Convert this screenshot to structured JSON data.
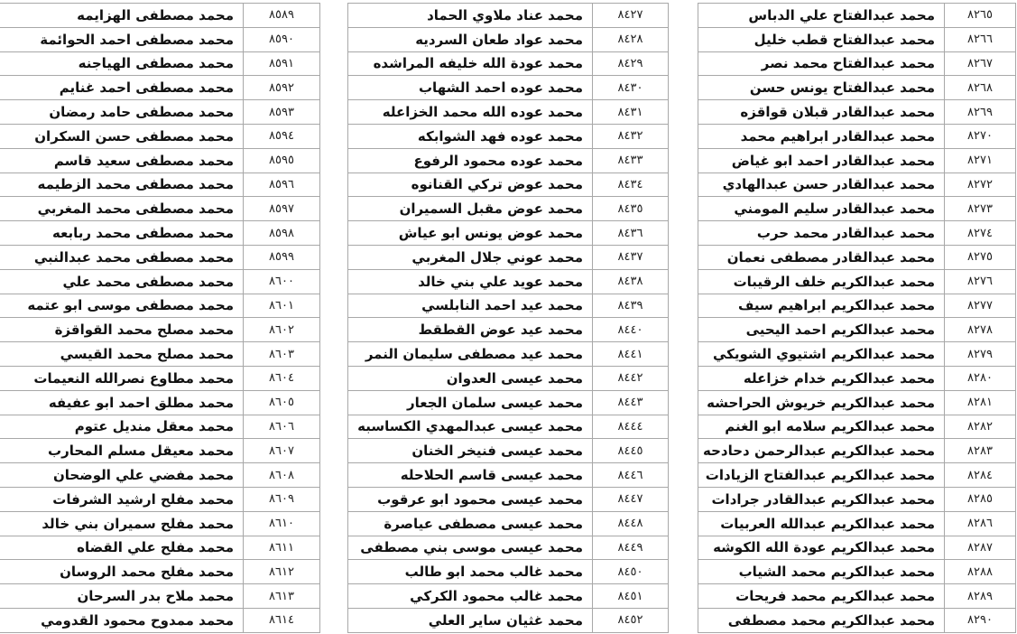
{
  "tables": [
    {
      "id": "left",
      "rows": [
        {
          "num": "٨٥٨٩",
          "name": "محمد مصطفى   الهزايمه"
        },
        {
          "num": "٨٥٩٠",
          "name": "محمد مصطفى  احمد الحوائمة"
        },
        {
          "num": "٨٥٩١",
          "name": "محمد مصطفى  الهياجنه"
        },
        {
          "num": "٨٥٩٢",
          "name": "محمد مصطفى احمد غنايم"
        },
        {
          "num": "٨٥٩٣",
          "name": "محمد مصطفى حامد رمضان"
        },
        {
          "num": "٨٥٩٤",
          "name": "محمد مصطفى حسن السكران"
        },
        {
          "num": "٨٥٩٥",
          "name": "محمد مصطفى سعيد قاسم"
        },
        {
          "num": "٨٥٩٦",
          "name": "محمد مصطفى محمد الزطيمه"
        },
        {
          "num": "٨٥٩٧",
          "name": "محمد مصطفى محمد المغربي"
        },
        {
          "num": "٨٥٩٨",
          "name": "محمد مصطفى محمد ربابعه"
        },
        {
          "num": "٨٥٩٩",
          "name": "محمد مصطفى محمد عبدالنبي"
        },
        {
          "num": "٨٦٠٠",
          "name": "محمد مصطفى محمد علي"
        },
        {
          "num": "٨٦٠١",
          "name": "محمد مصطفى موسى ابو عتمه"
        },
        {
          "num": "٨٦٠٢",
          "name": "محمد مصلح محمد القواقزة"
        },
        {
          "num": "٨٦٠٣",
          "name": "محمد مصلح محمد القيسي"
        },
        {
          "num": "٨٦٠٤",
          "name": "محمد مطاوع نصرالله النعيمات"
        },
        {
          "num": "٨٦٠٥",
          "name": "محمد مطلق احمد ابو عفيفه"
        },
        {
          "num": "٨٦٠٦",
          "name": "محمد معقل منديل عتوم"
        },
        {
          "num": "٨٦٠٧",
          "name": "محمد معيقل مسلم المحارب"
        },
        {
          "num": "٨٦٠٨",
          "name": "محمد مفضي علي الوضحان"
        },
        {
          "num": "٨٦٠٩",
          "name": "محمد مفلح ارشيد الشرفات"
        },
        {
          "num": "٨٦١٠",
          "name": "محمد مفلح سميران بني خالد"
        },
        {
          "num": "٨٦١١",
          "name": "محمد مفلح علي القضاه"
        },
        {
          "num": "٨٦١٢",
          "name": "محمد مفلح محمد الروسان"
        },
        {
          "num": "٨٦١٣",
          "name": "محمد ملاح بدر السرحان"
        },
        {
          "num": "٨٦١٤",
          "name": "محمد ممدوح  محمود القدومي"
        }
      ]
    },
    {
      "id": "mid",
      "rows": [
        {
          "num": "٨٤٢٧",
          "name": "محمد عناد ملاوي الحماد"
        },
        {
          "num": "٨٤٢٨",
          "name": "محمد عواد طعان السرديه"
        },
        {
          "num": "٨٤٢٩",
          "name": "محمد عودة الله خليفه المراشده"
        },
        {
          "num": "٨٤٣٠",
          "name": "محمد عوده احمد الشهاب"
        },
        {
          "num": "٨٤٣١",
          "name": "محمد عوده الله محمد الخزاعله"
        },
        {
          "num": "٨٤٣٢",
          "name": "محمد عوده فهد الشوابكه"
        },
        {
          "num": "٨٤٣٣",
          "name": "محمد عوده محمود الرفوع"
        },
        {
          "num": "٨٤٣٤",
          "name": "محمد عوض تركي القنانوه"
        },
        {
          "num": "٨٤٣٥",
          "name": "محمد عوض مقبل السميران"
        },
        {
          "num": "٨٤٣٦",
          "name": "محمد عوض يونس ابو عياش"
        },
        {
          "num": "٨٤٣٧",
          "name": "محمد عوني جلال المغربي"
        },
        {
          "num": "٨٤٣٨",
          "name": "محمد عويد علي بني خالد"
        },
        {
          "num": "٨٤٣٩",
          "name": "محمد عيد احمد النابلسي"
        },
        {
          "num": "٨٤٤٠",
          "name": "محمد عيد عوض القطقط"
        },
        {
          "num": "٨٤٤١",
          "name": "محمد عيد مصطفى  سليمان  النمر"
        },
        {
          "num": "٨٤٤٢",
          "name": "محمد عيسى  العدوان"
        },
        {
          "num": "٨٤٤٣",
          "name": "محمد عيسى سلمان الجعار"
        },
        {
          "num": "٨٤٤٤",
          "name": "محمد عيسى عبدالمهدي الكساسبه"
        },
        {
          "num": "٨٤٤٥",
          "name": "محمد عيسى فنيخر الخنان"
        },
        {
          "num": "٨٤٤٦",
          "name": "محمد عيسى قاسم الحلاحله"
        },
        {
          "num": "٨٤٤٧",
          "name": "محمد عيسى محمود ابو عرقوب"
        },
        {
          "num": "٨٤٤٨",
          "name": "محمد عيسى مصطفى عياصرة"
        },
        {
          "num": "٨٤٤٩",
          "name": "محمد عيسى موسى بني مصطفى"
        },
        {
          "num": "٨٤٥٠",
          "name": "محمد غالب محمد ابو طالب"
        },
        {
          "num": "٨٤٥١",
          "name": "محمد غالب محمود الكركي"
        },
        {
          "num": "٨٤٥٢",
          "name": "محمد غثيان ساير العلي"
        }
      ]
    },
    {
      "id": "right",
      "rows": [
        {
          "num": "٨٢٦٥",
          "name": "محمد عبدالفتاح علي الدباس"
        },
        {
          "num": "٨٢٦٦",
          "name": "محمد عبدالفتاح قطب خليل"
        },
        {
          "num": "٨٢٦٧",
          "name": "محمد عبدالفتاح محمد نصر"
        },
        {
          "num": "٨٢٦٨",
          "name": "محمد عبدالفتاح يونس حسن"
        },
        {
          "num": "٨٢٦٩",
          "name": "محمد عبدالقادر  قبلان قواقزه"
        },
        {
          "num": "٨٢٧٠",
          "name": "محمد عبدالقادر ابراهيم محمد"
        },
        {
          "num": "٨٢٧١",
          "name": "محمد عبدالقادر احمد ابو غياض"
        },
        {
          "num": "٨٢٧٢",
          "name": "محمد عبدالقادر حسن عبدالهادي"
        },
        {
          "num": "٨٢٧٣",
          "name": "محمد عبدالقادر سليم المومني"
        },
        {
          "num": "٨٢٧٤",
          "name": "محمد عبدالقادر محمد حرب"
        },
        {
          "num": "٨٢٧٥",
          "name": "محمد عبدالقادر مصطفى نعمان"
        },
        {
          "num": "٨٢٧٦",
          "name": "محمد عبدالكريم  خلف  الرقيبات"
        },
        {
          "num": "٨٢٧٧",
          "name": "محمد عبدالكريم ابراهيم سيف"
        },
        {
          "num": "٨٢٧٨",
          "name": "محمد عبدالكريم احمد اليحيى"
        },
        {
          "num": "٨٢٧٩",
          "name": "محمد عبدالكريم اشتيوي الشويكي"
        },
        {
          "num": "٨٢٨٠",
          "name": "محمد عبدالكريم خدام خزاعله"
        },
        {
          "num": "٨٢٨١",
          "name": "محمد عبدالكريم خريوش الحراحشه"
        },
        {
          "num": "٨٢٨٢",
          "name": "محمد عبدالكريم سلامه ابو الغنم"
        },
        {
          "num": "٨٢٨٣",
          "name": "محمد عبدالكريم عبدالرحمن دحادحه"
        },
        {
          "num": "٨٢٨٤",
          "name": "محمد عبدالكريم عبدالفتاح الزيادات"
        },
        {
          "num": "٨٢٨٥",
          "name": "محمد عبدالكريم عبدالقادر جرادات"
        },
        {
          "num": "٨٢٨٦",
          "name": "محمد عبدالكريم عبدالله العربيات"
        },
        {
          "num": "٨٢٨٧",
          "name": "محمد عبدالكريم عودة الله الكوشه"
        },
        {
          "num": "٨٢٨٨",
          "name": "محمد عبدالكريم محمد الشياب"
        },
        {
          "num": "٨٢٨٩",
          "name": "محمد عبدالكريم محمد فريحات"
        },
        {
          "num": "٨٢٩٠",
          "name": "محمد عبدالكريم محمد مصطفى"
        }
      ]
    }
  ]
}
